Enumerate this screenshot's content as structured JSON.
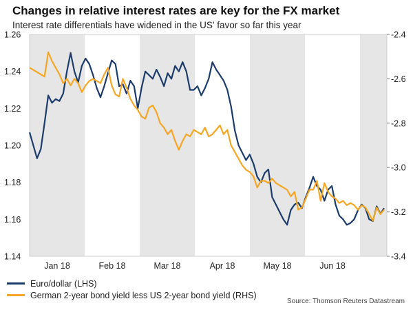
{
  "chart_data": {
    "type": "line",
    "title": "Changes in relative interest rates are key for the FX market",
    "subtitle": "Interest rate differentials have widened in the US' favor so far this year",
    "source": "Source: Thomson Reuters Datastream",
    "x_labels": [
      "Jan 18",
      "Feb 18",
      "Mar 18",
      "Apr 18",
      "May 18",
      "Jun 18"
    ],
    "y_left": {
      "label": "LHS",
      "ylim": [
        1.14,
        1.26
      ],
      "ticks": [
        1.26,
        1.24,
        1.22,
        1.2,
        1.18,
        1.16,
        1.14
      ]
    },
    "y_right": {
      "label": "RHS",
      "ylim": [
        -3.4,
        -2.4
      ],
      "ticks": [
        -2.4,
        -2.6,
        -2.8,
        -3.0,
        -3.2,
        -3.4
      ]
    },
    "shaded_months": [
      0,
      2,
      4,
      6
    ],
    "series": [
      {
        "name": "Euro/dollar (LHS)",
        "axis": "left",
        "color": "#1b3c6b",
        "values": [
          1.207,
          1.2,
          1.193,
          1.198,
          1.212,
          1.227,
          1.223,
          1.225,
          1.224,
          1.228,
          1.24,
          1.25,
          1.24,
          1.234,
          1.243,
          1.247,
          1.244,
          1.238,
          1.231,
          1.226,
          1.232,
          1.239,
          1.246,
          1.244,
          1.232,
          1.233,
          1.228,
          1.235,
          1.232,
          1.22,
          1.231,
          1.24,
          1.238,
          1.236,
          1.241,
          1.237,
          1.232,
          1.239,
          1.236,
          1.243,
          1.24,
          1.245,
          1.24,
          1.23,
          1.23,
          1.232,
          1.227,
          1.231,
          1.236,
          1.245,
          1.241,
          1.238,
          1.235,
          1.23,
          1.221,
          1.208,
          1.2,
          1.196,
          1.192,
          1.195,
          1.19,
          1.183,
          1.18,
          1.185,
          1.187,
          1.172,
          1.168,
          1.164,
          1.16,
          1.157,
          1.165,
          1.168,
          1.169,
          1.166,
          1.172,
          1.177,
          1.183,
          1.178,
          1.176,
          1.17,
          1.176,
          1.178,
          1.168,
          1.162,
          1.16,
          1.157,
          1.158,
          1.16,
          1.165,
          1.168,
          1.166,
          1.16,
          1.159,
          1.167,
          1.163,
          1.166
        ]
      },
      {
        "name": "German 2-year bond yield less US 2-year bond yield (RHS)",
        "axis": "right",
        "color": "#f5a623",
        "values": [
          -2.55,
          -2.56,
          -2.57,
          -2.58,
          -2.59,
          -2.48,
          -2.52,
          -2.55,
          -2.58,
          -2.62,
          -2.6,
          -2.63,
          -2.6,
          -2.62,
          -2.66,
          -2.63,
          -2.61,
          -2.6,
          -2.61,
          -2.62,
          -2.58,
          -2.55,
          -2.63,
          -2.67,
          -2.68,
          -2.6,
          -2.64,
          -2.69,
          -2.72,
          -2.74,
          -2.77,
          -2.78,
          -2.73,
          -2.72,
          -2.75,
          -2.8,
          -2.82,
          -2.85,
          -2.83,
          -2.88,
          -2.92,
          -2.88,
          -2.85,
          -2.86,
          -2.83,
          -2.84,
          -2.85,
          -2.82,
          -2.86,
          -2.85,
          -2.83,
          -2.81,
          -2.85,
          -2.83,
          -2.9,
          -2.93,
          -2.96,
          -2.99,
          -3.01,
          -3.02,
          -3.04,
          -3.09,
          -3.06,
          -3.06,
          -3.07,
          -3.05,
          -3.07,
          -3.08,
          -3.09,
          -3.1,
          -3.13,
          -3.11,
          -3.19,
          -3.18,
          -3.14,
          -3.1,
          -3.1,
          -3.06,
          -3.15,
          -3.07,
          -3.11,
          -3.13,
          -3.14,
          -3.16,
          -3.15,
          -3.17,
          -3.16,
          -3.17,
          -3.19,
          -3.17,
          -3.18,
          -3.21,
          -3.24,
          -3.18,
          -3.21,
          -3.19
        ]
      }
    ]
  }
}
